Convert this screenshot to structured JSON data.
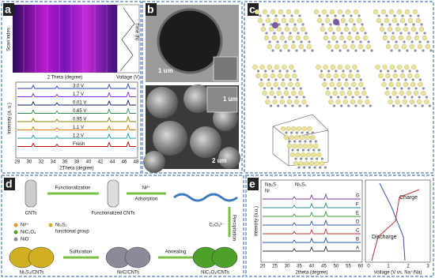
{
  "panels": {
    "a": {
      "label": "a",
      "heatmap": {
        "y_label": "Scan index",
        "x_label": "2 Theta (degree)",
        "right_x_label": "Voltage (V)",
        "right_y_label": "Time (h)"
      },
      "xrd": {
        "y_label": "Intensity (a. u.)",
        "x_label": "2Theta (degree)",
        "traces": [
          "3.0 V",
          "1.7 V",
          "0.01 V",
          "0.65 V",
          "0.95 V",
          "1.1 V",
          "1.2 V",
          "Fresh"
        ],
        "xticks": [
          "28",
          "30",
          "32",
          "34",
          "36",
          "38",
          "40",
          "42",
          "44",
          "46",
          "48"
        ]
      }
    },
    "b": {
      "label": "b",
      "scale_bars": [
        "1 um",
        "1 um",
        "2 um"
      ]
    },
    "c": {
      "label": "c"
    },
    "d": {
      "label": "d",
      "steps": [
        "CNTs",
        "Functionalization",
        "Functionalized CNTs",
        "Ni²⁺",
        "Adsorption",
        "Precipitation",
        "C₂O₄²⁻",
        "Annealing",
        "Sulfuration"
      ],
      "products": [
        "NiC₂O₄/CNTs",
        "Ni/C/CNTs",
        "Ni₃S₂/CNTs"
      ],
      "legend": [
        "Ni²⁺",
        "NiC₂O₄",
        "NiO",
        "Ni₃S₂",
        "functional group"
      ]
    },
    "e": {
      "label": "e",
      "legend": [
        "Na₂S",
        "Ni₃S₂",
        "Ni"
      ],
      "y_label": "Intensity (a.u.)",
      "x_label": "2theta (degree)",
      "xticks": [
        "20",
        "25",
        "30",
        "35",
        "40",
        "45",
        "50",
        "55",
        "60"
      ],
      "traces": [
        "G",
        "F",
        "E",
        "D",
        "C",
        "B",
        "A"
      ],
      "charge": "Charge",
      "discharge": "Discharge",
      "voltage_label": "Voltage (V vs. Na⁺/Na)",
      "voltage_ticks": [
        "0",
        "1",
        "2",
        "3"
      ]
    }
  }
}
